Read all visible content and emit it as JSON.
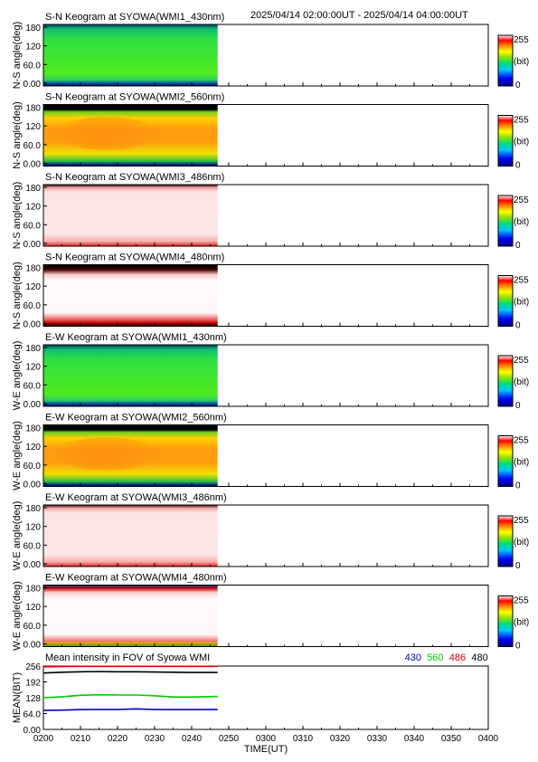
{
  "header": {
    "time_range": "2025/04/14 02:00:00UT - 2025/04/14 04:00:00UT"
  },
  "panels": [
    {
      "title": "S-N Keogram at SYOWA(WMI1_430nm)",
      "ylabel": "N-S angle(deg)",
      "yticks": [
        "180",
        "120",
        "60.0",
        "0.00"
      ],
      "profile": "green"
    },
    {
      "title": "S-N Keogram at SYOWA(WMI2_560nm)",
      "ylabel": "N-S angle(deg)",
      "yticks": [
        "180",
        "120",
        "60.0",
        "0.00"
      ],
      "profile": "orange"
    },
    {
      "title": "S-N Keogram at SYOWA(WMI3_486nm)",
      "ylabel": "N-S angle(deg)",
      "yticks": [
        "180",
        "120",
        "60.0",
        "0.00"
      ],
      "profile": "pink"
    },
    {
      "title": "S-N Keogram at SYOWA(WMI4_480nm)",
      "ylabel": "N-S angle(deg)",
      "yticks": [
        "180",
        "120",
        "60.0",
        "0.00"
      ],
      "profile": "white"
    },
    {
      "title": "E-W Keogram at SYOWA(WMI1_430nm)",
      "ylabel": "W-E angle(deg)",
      "yticks": [
        "180",
        "120",
        "60.0",
        "0.00"
      ],
      "profile": "green"
    },
    {
      "title": "E-W Keogram at SYOWA(WMI2_560nm)",
      "ylabel": "W-E angle(deg)",
      "yticks": [
        "180",
        "120",
        "60.0",
        "0.00"
      ],
      "profile": "orange"
    },
    {
      "title": "E-W Keogram at SYOWA(WMI3_486nm)",
      "ylabel": "W-E angle(deg)",
      "yticks": [
        "180",
        "120",
        "60.0",
        "0.00"
      ],
      "profile": "pink"
    },
    {
      "title": "E-W Keogram at SYOWA(WMI4_480nm)",
      "ylabel": "W-E angle(deg)",
      "yticks": [
        "180",
        "120",
        "60.0",
        "0.00"
      ],
      "profile": "white_ew"
    }
  ],
  "colorbar": {
    "max_label": "255",
    "unit_label": "(bit)",
    "min_label": "0"
  },
  "mean_panel": {
    "title": "Mean intensity in FOV of Syowa WMI",
    "ylabel": "MEAN(BIT)",
    "yticks": [
      "256",
      "192",
      "128",
      "64.0",
      "0.00"
    ],
    "legend": [
      {
        "label": "430",
        "color": "#0000cc"
      },
      {
        "label": "560",
        "color": "#00cc00"
      },
      {
        "label": "486",
        "color": "#dd0000"
      },
      {
        "label": "480",
        "color": "#000000"
      }
    ]
  },
  "x_axis": {
    "label": "TIME(UT)",
    "ticks": [
      "0200",
      "0210",
      "0220",
      "0230",
      "0240",
      "0250",
      "0300",
      "0310",
      "0320",
      "0330",
      "0340",
      "0350",
      "0400"
    ]
  },
  "chart_data": [
    {
      "type": "heatmap",
      "title": "Keograms (S-N and E-W) at SYOWA, WMI1_430nm / WMI2_560nm / WMI3_486nm / WMI4_480nm",
      "x_range_ut": [
        "02:00",
        "04:00"
      ],
      "data_end_ut": "02:47",
      "y_range_deg": [
        0,
        180
      ],
      "color_range_bit": [
        0,
        255
      ]
    },
    {
      "type": "line",
      "title": "Mean intensity in FOV of Syowa WMI",
      "xlabel": "TIME(UT)",
      "ylabel": "MEAN(BIT)",
      "x_minutes_after_0200": [
        0,
        5,
        10,
        15,
        20,
        25,
        30,
        35,
        40,
        47
      ],
      "ylim": [
        0,
        256
      ],
      "series": [
        {
          "name": "430",
          "color": "#0000cc",
          "values": [
            77,
            78,
            80,
            81,
            81,
            83,
            81,
            80,
            80,
            81
          ]
        },
        {
          "name": "560",
          "color": "#00cc00",
          "values": [
            128,
            132,
            138,
            140,
            139,
            139,
            136,
            131,
            131,
            133
          ]
        },
        {
          "name": "486",
          "color": "#dd0000",
          "values": [
            253,
            254,
            255,
            255,
            255,
            255,
            255,
            255,
            255,
            255
          ]
        },
        {
          "name": "480",
          "color": "#000000",
          "values": [
            228,
            231,
            233,
            234,
            233,
            233,
            232,
            231,
            230,
            230
          ]
        }
      ]
    }
  ]
}
